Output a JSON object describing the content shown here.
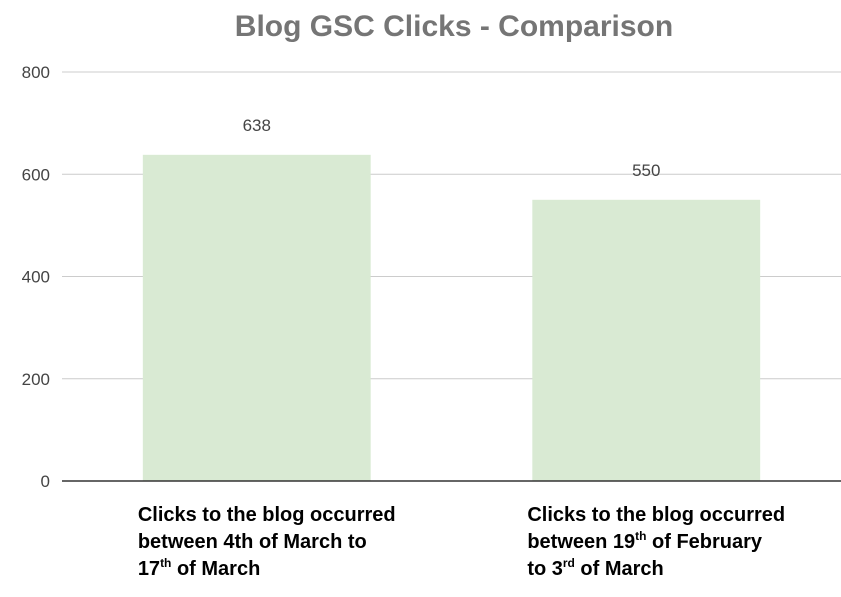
{
  "chart_data": {
    "type": "bar",
    "title": "Blog GSC Clicks - Comparison",
    "xlabel": "",
    "ylabel": "",
    "ylim": [
      0,
      800
    ],
    "yticks": [
      0,
      200,
      400,
      600,
      800
    ],
    "grid": true,
    "legend": "none",
    "bar_color": "#d9ead3",
    "categories": [
      "Clicks to the blog occurred between 4th of March to 17th of March",
      "Clicks to the blog occurred between 19th of February to 3rd of March"
    ],
    "category_lines": [
      [
        [
          {
            "t": "Clicks to the blog occurred"
          }
        ],
        [
          {
            "t": "between 4th of March to"
          }
        ],
        [
          {
            "t": "17"
          },
          {
            "t": "th",
            "sup": true
          },
          {
            "t": " of March"
          }
        ]
      ],
      [
        [
          {
            "t": "Clicks to the blog occurred"
          }
        ],
        [
          {
            "t": "between 19"
          },
          {
            "t": "th",
            "sup": true
          },
          {
            "t": " of February"
          }
        ],
        [
          {
            "t": "to 3"
          },
          {
            "t": "rd",
            "sup": true
          },
          {
            "t": " of March"
          }
        ]
      ]
    ],
    "values": [
      638,
      550
    ],
    "data_labels": [
      "638",
      "550"
    ]
  }
}
